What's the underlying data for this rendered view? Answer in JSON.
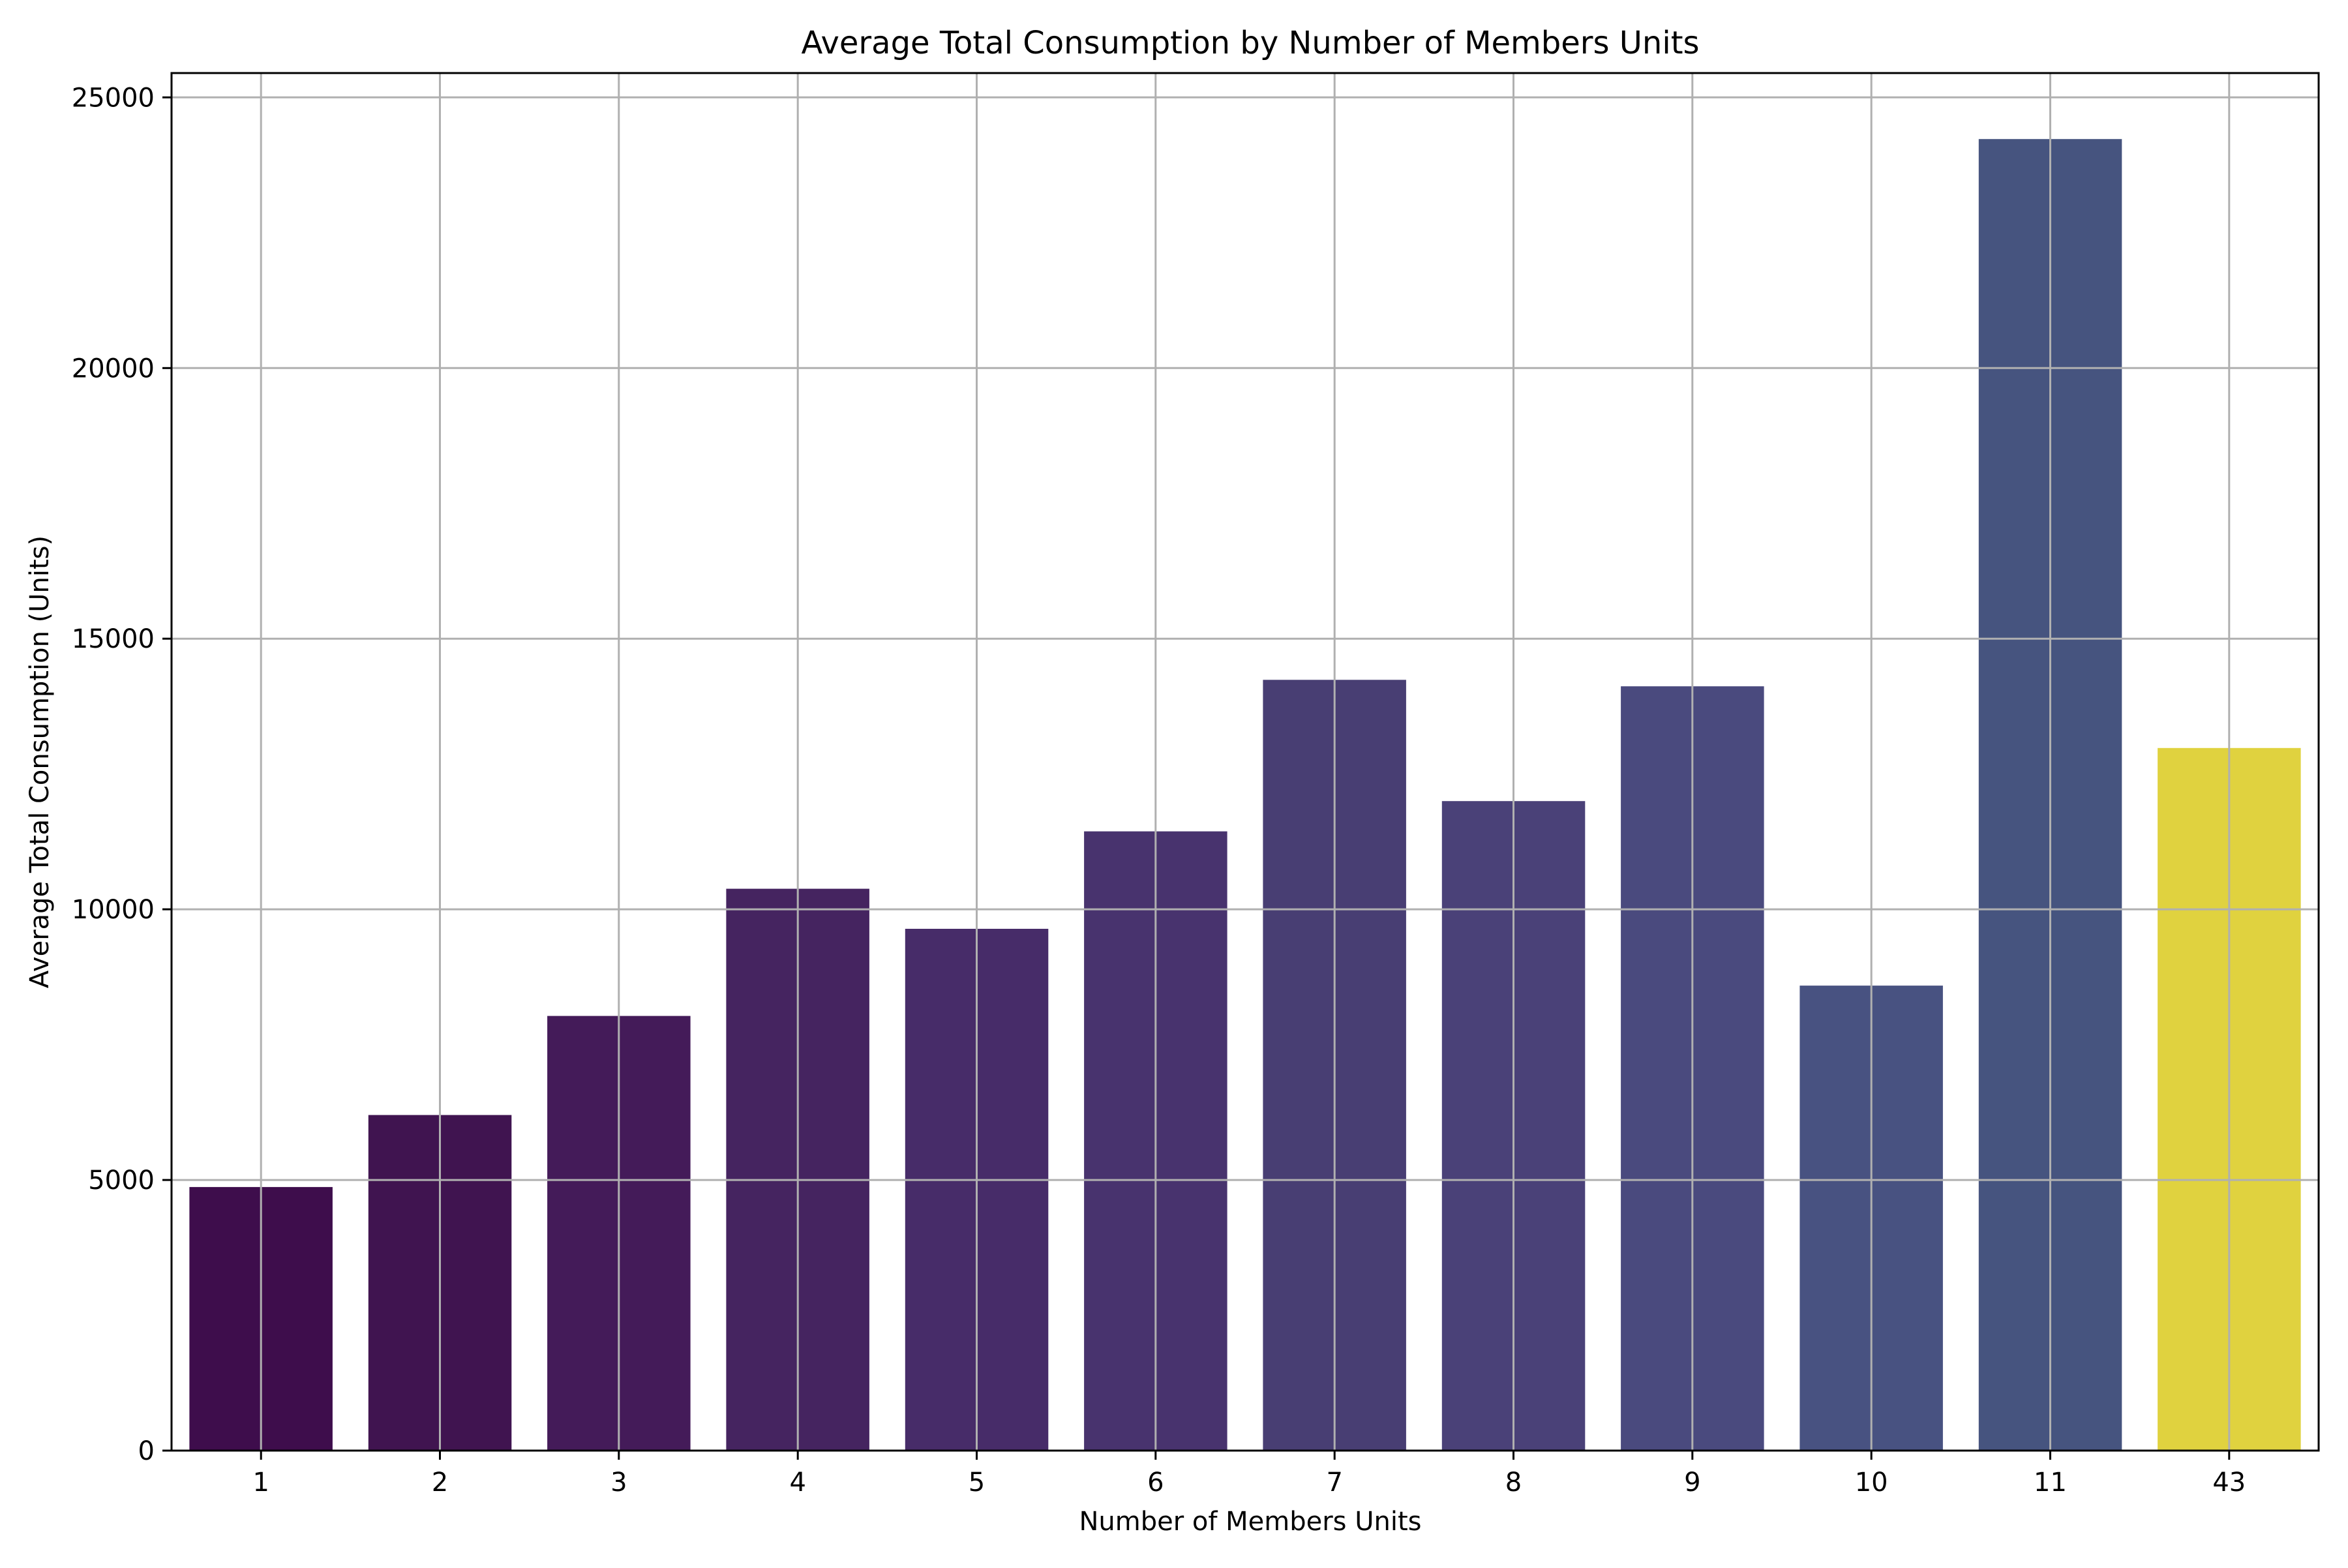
{
  "chart_data": {
    "type": "bar",
    "title": "Average Total Consumption by Number of Members Units",
    "xlabel": "Number of Members Units",
    "ylabel": "Average Total Consumption (Units)",
    "categories": [
      "1",
      "2",
      "3",
      "4",
      "5",
      "6",
      "7",
      "8",
      "9",
      "10",
      "11",
      "43"
    ],
    "values": [
      4870,
      6200,
      8030,
      10380,
      9640,
      11440,
      14240,
      12000,
      14120,
      8590,
      24230,
      12980
    ],
    "colors": [
      "#3e0d4c",
      "#401450",
      "#441b59",
      "#452460",
      "#472c69",
      "#48336e",
      "#483e73",
      "#4a4178",
      "#4a4a7e",
      "#485281",
      "#46547f",
      "#e0d23f"
    ],
    "ylim": [
      0,
      25450
    ],
    "yticks": [
      0,
      5000,
      10000,
      15000,
      20000,
      25000
    ],
    "grid": true
  }
}
